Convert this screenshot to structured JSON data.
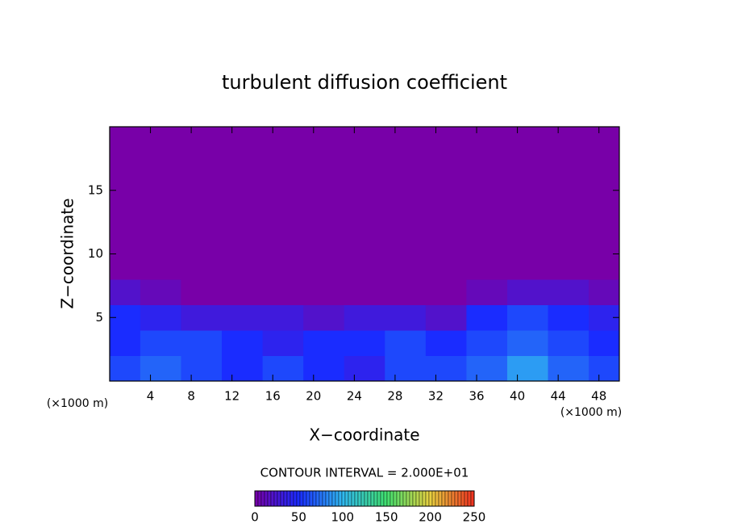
{
  "chart_data": {
    "type": "heatmap",
    "title": "turbulent diffusion coefficient",
    "x_label": "X−coordinate",
    "y_label": "Z−coordinate",
    "x_unit": "(×1000 m)",
    "y_unit": "(×1000 m)",
    "note": "CONTOUR INTERVAL = 2.000E+01",
    "xlim": [
      0,
      50
    ],
    "ylim": [
      0,
      20
    ],
    "xticks": [
      4,
      8,
      12,
      16,
      20,
      24,
      28,
      32,
      36,
      40,
      44,
      48
    ],
    "yticks": [
      5,
      10,
      15
    ],
    "x": [
      1,
      5,
      9,
      13,
      17,
      21,
      25,
      29,
      33,
      37,
      41,
      45,
      49
    ],
    "y": [
      1,
      3,
      5,
      7,
      9,
      11,
      13,
      15,
      17,
      19
    ],
    "z": [
      [
        60,
        70,
        60,
        50,
        60,
        50,
        40,
        60,
        60,
        70,
        90,
        70,
        60
      ],
      [
        50,
        60,
        60,
        50,
        40,
        50,
        50,
        60,
        50,
        60,
        70,
        60,
        50
      ],
      [
        50,
        40,
        30,
        30,
        30,
        20,
        30,
        30,
        20,
        50,
        60,
        50,
        40
      ],
      [
        20,
        10,
        0,
        0,
        0,
        0,
        0,
        0,
        0,
        10,
        20,
        20,
        10
      ],
      [
        0,
        0,
        0,
        0,
        0,
        0,
        0,
        0,
        0,
        0,
        0,
        0,
        0
      ],
      [
        0,
        0,
        0,
        0,
        0,
        0,
        0,
        0,
        0,
        0,
        0,
        0,
        0
      ],
      [
        0,
        0,
        0,
        0,
        0,
        0,
        0,
        0,
        0,
        0,
        0,
        0,
        0
      ],
      [
        0,
        0,
        0,
        0,
        0,
        0,
        0,
        0,
        0,
        0,
        0,
        0,
        0
      ],
      [
        0,
        0,
        0,
        0,
        0,
        0,
        0,
        0,
        0,
        0,
        0,
        0,
        0
      ],
      [
        0,
        0,
        0,
        0,
        0,
        0,
        0,
        0,
        0,
        0,
        0,
        0,
        0
      ]
    ],
    "colorbar_range": [
      0,
      250
    ],
    "colorbar_ticks": [
      0,
      50,
      100,
      150,
      200,
      250
    ],
    "colors": [
      "#7800a8",
      "#1a2cff",
      "#30b8f0",
      "#40e070",
      "#e8d040",
      "#f03020"
    ]
  }
}
